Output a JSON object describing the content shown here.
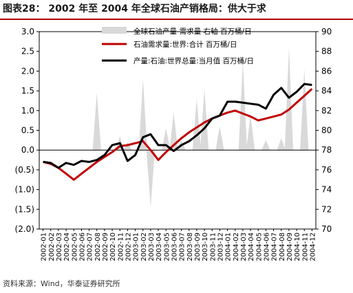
{
  "header": {
    "title": "图表28：  2002 年至 2004 年全球石油产销格局：供大于求"
  },
  "source": "资料来源：Wind，华泰证券研究所",
  "colors": {
    "bars": "#d9d9d9",
    "demand": "#c00000",
    "production": "#000000",
    "title_rule": "#b00000"
  },
  "chart_data": {
    "type": "line",
    "categories": [
      "2002-01",
      "2002-02",
      "2002-03",
      "2002-04",
      "2002-05",
      "2002-06",
      "2002-07",
      "2002-08",
      "2002-09",
      "2002-10",
      "2002-11",
      "2002-12",
      "2003-01",
      "2003-02",
      "2003-03",
      "2003-04",
      "2003-05",
      "2003-06",
      "2003-07",
      "2003-08",
      "2003-09",
      "2003-10",
      "2003-11",
      "2003-12",
      "2004-01",
      "2004-02",
      "2004-03",
      "2004-04",
      "2004-05",
      "2004-06",
      "2004-07",
      "2004-08",
      "2004-09",
      "2004-10",
      "2004-11",
      "2004-12"
    ],
    "left_axis": {
      "ylim": [
        -2.0,
        3.0
      ],
      "ticks": [
        3.0,
        2.5,
        2.0,
        1.5,
        1.0,
        0.5,
        0.0,
        -0.5,
        -1.0,
        -1.5,
        -2.0
      ],
      "tick_labels": [
        "3.0",
        "2.5",
        "2.0",
        "1.5",
        "1.0",
        "0.5",
        "0.0",
        "(0.5)",
        "(1.0)",
        "(1.5)",
        "(2.0)"
      ]
    },
    "right_axis": {
      "ylim": [
        70,
        90
      ],
      "ticks": [
        90,
        88,
        86,
        84,
        82,
        80,
        78,
        76,
        74,
        72,
        70
      ],
      "tick_labels": [
        "90",
        "88",
        "86",
        "84",
        "82",
        "80",
        "78",
        "76",
        "74",
        "72",
        "70"
      ]
    },
    "series": [
      {
        "name": "全球石油产量-需求量  右轴 百万桶/日",
        "kind": "area",
        "axis": "left",
        "values": [
          0.0,
          0.0,
          0.0,
          0.0,
          0.0,
          0.0,
          0.0,
          1.45,
          0.0,
          0.0,
          0.35,
          0.2,
          0.0,
          1.8,
          -1.45,
          0.0,
          0.55,
          0.95,
          0.25,
          0.0,
          1.3,
          1.55,
          0.0,
          0.6,
          0.0,
          0.0,
          2.25,
          0.9,
          0.0,
          0.25,
          0.0,
          0.3,
          2.6,
          0.0,
          2.05,
          0.0
        ]
      },
      {
        "name": "石油需求量:世界:合计  百万桶/日",
        "kind": "line",
        "axis": "right",
        "values": [
          76.8,
          76.6,
          76.2,
          75.6,
          75.0,
          75.6,
          76.2,
          76.8,
          77.3,
          77.8,
          78.4,
          78.5,
          78.7,
          78.9,
          78.0,
          77.0,
          77.8,
          78.5,
          79.2,
          79.8,
          80.3,
          80.8,
          81.2,
          81.5,
          81.8,
          82.0,
          81.7,
          81.4,
          81.0,
          81.2,
          81.4,
          81.6,
          82.1,
          82.8,
          83.5,
          84.2
        ]
      },
      {
        "name": "产量:石油:世界总量:当月值  百万桶/日",
        "kind": "line",
        "axis": "right",
        "values": [
          76.8,
          76.7,
          76.2,
          76.7,
          76.5,
          76.9,
          76.8,
          77.0,
          77.5,
          78.5,
          78.7,
          76.9,
          77.5,
          79.3,
          79.6,
          78.5,
          78.5,
          77.9,
          78.5,
          78.9,
          79.5,
          80.2,
          81.2,
          81.5,
          82.9,
          82.9,
          82.8,
          82.7,
          82.6,
          82.2,
          83.6,
          84.3,
          83.3,
          83.9,
          84.7,
          84.6
        ]
      }
    ]
  }
}
